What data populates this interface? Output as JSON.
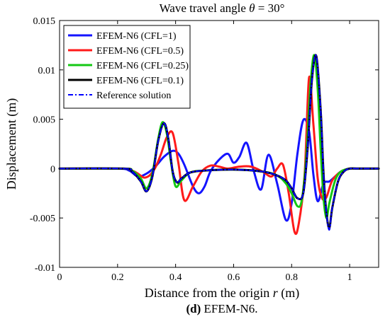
{
  "chart_data": {
    "type": "line",
    "title_prefix": "Wave travel angle ",
    "title_symbol": "θ",
    "title_suffix": " = 30°",
    "xlabel_prefix": "Distance from the origin ",
    "xlabel_symbol": "r",
    "xlabel_suffix": " (m)",
    "ylabel": "Displacement (m)",
    "caption_bold": "(d)",
    "caption_rest": " EFEM-N6.",
    "xlim": [
      0,
      1.1
    ],
    "ylim": [
      -0.01,
      0.015
    ],
    "x_ticks": [
      0,
      0.2,
      0.4,
      0.6,
      0.8,
      1
    ],
    "x_tick_labels": [
      "0",
      "0.2",
      "0.4",
      "0.6",
      "0.8",
      "1"
    ],
    "y_ticks": [
      -0.01,
      -0.005,
      0,
      0.005,
      0.01,
      0.015
    ],
    "y_tick_labels": [
      "-0.01",
      "-0.005",
      "0",
      "0.005",
      "0.01",
      "0.015"
    ],
    "legend_position": "top-left",
    "series": [
      {
        "name": "EFEM-N6 (CFL=1)",
        "color": "#1414ff",
        "dash": "solid",
        "x": [
          0,
          0.2,
          0.24,
          0.27,
          0.3,
          0.33,
          0.36,
          0.39,
          0.41,
          0.43,
          0.46,
          0.48,
          0.5,
          0.52,
          0.55,
          0.58,
          0.6,
          0.62,
          0.645,
          0.67,
          0.695,
          0.72,
          0.75,
          0.78,
          0.8,
          0.82,
          0.84,
          0.86,
          0.875,
          0.89,
          0.91,
          0.93,
          0.95,
          0.97,
          1.0,
          1.03,
          1.1
        ],
        "y": [
          0,
          0,
          -0.0002,
          -0.0008,
          -0.0005,
          0.0002,
          0.0012,
          0.0018,
          0.0015,
          0.0004,
          -0.0018,
          -0.0025,
          -0.0018,
          -0.0003,
          0.0009,
          0.0015,
          0.0006,
          0.0012,
          0.0026,
          -0.0003,
          -0.0021,
          0.0014,
          -0.0015,
          -0.0052,
          -0.0035,
          0.0015,
          0.0049,
          0.0038,
          -0.0006,
          -0.0033,
          -0.0015,
          -0.0013,
          -0.0008,
          -0.0003,
          0,
          0,
          0
        ]
      },
      {
        "name": "EFEM-N6 (CFL=0.5)",
        "color": "#ff1a1a",
        "dash": "solid",
        "x": [
          0,
          0.22,
          0.25,
          0.27,
          0.29,
          0.31,
          0.33,
          0.35,
          0.37,
          0.39,
          0.41,
          0.43,
          0.46,
          0.49,
          0.52,
          0.55,
          0.58,
          0.62,
          0.66,
          0.7,
          0.73,
          0.75,
          0.77,
          0.79,
          0.81,
          0.825,
          0.845,
          0.86,
          0.875,
          0.89,
          0.905,
          0.92,
          0.94,
          0.97,
          1.0,
          1.03,
          1.1
        ],
        "y": [
          0,
          0,
          -0.0002,
          -0.0005,
          -0.0009,
          -0.0007,
          0.0001,
          0.0015,
          0.0032,
          0.0036,
          0.0005,
          -0.0032,
          -0.0018,
          -0.0003,
          0.0003,
          0.0002,
          0,
          0.0002,
          0.0002,
          -0.0003,
          -0.0008,
          0,
          0.0004,
          -0.0025,
          -0.0064,
          -0.0055,
          -0.0005,
          0.0092,
          0.0045,
          -0.001,
          -0.003,
          -0.0029,
          -0.0012,
          -0.0003,
          0,
          0,
          0
        ]
      },
      {
        "name": "EFEM-N6 (CFL=0.25)",
        "color": "#14c814",
        "dash": "solid",
        "x": [
          0,
          0.22,
          0.25,
          0.28,
          0.3,
          0.32,
          0.34,
          0.355,
          0.37,
          0.385,
          0.4,
          0.42,
          0.45,
          0.5,
          0.6,
          0.7,
          0.75,
          0.78,
          0.8,
          0.82,
          0.835,
          0.85,
          0.865,
          0.878,
          0.89,
          0.9,
          0.91,
          0.92,
          0.93,
          0.95,
          0.97,
          1.0,
          1.03,
          1.1
        ],
        "y": [
          0,
          0,
          -0.0002,
          -0.001,
          -0.002,
          -0.0005,
          0.003,
          0.0047,
          0.0035,
          0.0005,
          -0.0018,
          -0.0012,
          -0.0004,
          -0.0002,
          -0.0001,
          -0.0003,
          -0.0007,
          -0.0015,
          -0.0025,
          -0.0038,
          -0.0032,
          0.001,
          0.0085,
          0.0115,
          0.008,
          0.002,
          -0.003,
          -0.005,
          -0.0035,
          -0.0012,
          -0.0003,
          0,
          0,
          0
        ]
      },
      {
        "name": "EFEM-N6 (CFL=0.1)",
        "color": "#000000",
        "dash": "solid",
        "x": [
          0,
          0.22,
          0.25,
          0.28,
          0.3,
          0.32,
          0.34,
          0.36,
          0.375,
          0.39,
          0.405,
          0.42,
          0.45,
          0.5,
          0.6,
          0.7,
          0.75,
          0.78,
          0.8,
          0.82,
          0.84,
          0.855,
          0.87,
          0.885,
          0.9,
          0.91,
          0.92,
          0.93,
          0.94,
          0.96,
          0.98,
          1.0,
          1.03,
          1.1
        ],
        "y": [
          0,
          0,
          -0.0003,
          -0.0013,
          -0.0023,
          -0.0008,
          0.0028,
          0.0046,
          0.003,
          -0.0003,
          -0.0014,
          -0.001,
          -0.0004,
          -0.0002,
          -0.0001,
          -0.0003,
          -0.0007,
          -0.0012,
          -0.002,
          -0.003,
          -0.0025,
          0.002,
          0.009,
          0.0114,
          0.006,
          -0.0005,
          -0.0045,
          -0.006,
          -0.004,
          -0.0013,
          -0.0003,
          0,
          0,
          0
        ]
      },
      {
        "name": "Reference solution",
        "color": "#0000ff",
        "dash": "dashdot",
        "x": [
          0,
          0.22,
          0.25,
          0.28,
          0.3,
          0.32,
          0.34,
          0.36,
          0.375,
          0.39,
          0.405,
          0.42,
          0.45,
          0.5,
          0.6,
          0.7,
          0.75,
          0.78,
          0.8,
          0.82,
          0.84,
          0.855,
          0.87,
          0.885,
          0.9,
          0.91,
          0.92,
          0.93,
          0.94,
          0.96,
          0.98,
          1.0,
          1.03,
          1.1
        ],
        "y": [
          0,
          0,
          -0.0003,
          -0.0013,
          -0.0023,
          -0.0008,
          0.0028,
          0.0046,
          0.003,
          -0.0003,
          -0.0014,
          -0.001,
          -0.0004,
          -0.0002,
          -0.0001,
          -0.0003,
          -0.0007,
          -0.0012,
          -0.002,
          -0.003,
          -0.0025,
          0.002,
          0.009,
          0.0114,
          0.006,
          -0.0005,
          -0.0045,
          -0.0062,
          -0.004,
          -0.0013,
          -0.0003,
          0,
          0,
          0
        ]
      }
    ]
  }
}
